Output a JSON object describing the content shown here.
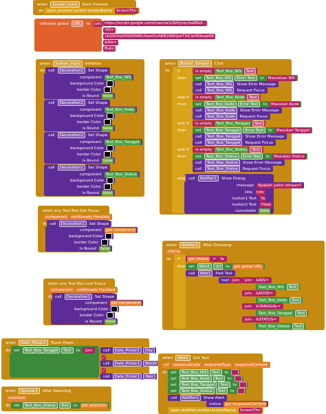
{
  "groups": [
    {
      "rows": [
        [
          "when",
          "Screen_Input",
          "Back Pressed"
        ],
        [
          "do"
        ],
        [
          "open another screen screenName",
          "ScreenThn"
        ]
      ]
    },
    {
      "rows": [
        [
          "initialize global",
          "URL",
          "to",
          "join"
        ],
        [
          "https://script.google.com/macros/s/AKfycbySwBKef..."
        ],
        [
          "?ID="
        ],
        [
          "1bQ6OfzD0lQ6tNWcXewOmA6B1NWrJseT3tCwf4iNsqeRA"
        ],
        [
          "&Nis="
        ],
        [
          "Buku"
        ]
      ]
    },
    {
      "rows": [
        [
          "when",
          "Screen_Input",
          "Initialize"
        ],
        [
          "do"
        ],
        [
          "call",
          "Decoration1",
          "Set Shape"
        ],
        [
          "component",
          "Text_Box_NIS"
        ],
        [
          "background Color"
        ],
        [
          "border Color"
        ],
        [
          "is Round",
          "false"
        ],
        [
          "call",
          "Decoration1",
          "Set Shape"
        ],
        [
          "component",
          "Text_Box_Kode"
        ],
        [
          "background Color"
        ],
        [
          "border Color"
        ],
        [
          "is Round",
          "false"
        ],
        [
          "call",
          "Decoration1",
          "Set Shape"
        ],
        [
          "component",
          "Text_Box_Tanggal"
        ],
        [
          "background Color"
        ],
        [
          "border Color"
        ],
        [
          "is Round",
          "false"
        ],
        [
          "call",
          "Decoration1",
          "Set Shape"
        ],
        [
          "component",
          "Text_Box_Status"
        ],
        [
          "background Color"
        ],
        [
          "border Color"
        ],
        [
          "is Round",
          "false"
        ]
      ]
    },
    {
      "rows": [
        [
          "when",
          "Button_Simpan",
          "Click"
        ],
        [
          "do"
        ],
        [
          "if"
        ],
        [
          "is empty",
          "Text_Box_NIS",
          "Text"
        ],
        [
          "then"
        ],
        [
          "set",
          "Text_Box_NIS",
          "Error Text",
          "to",
          "Masukkan NIS"
        ],
        [
          "call",
          "Text_Box_NIS",
          "Show Error Message"
        ],
        [
          "call",
          "Text_Box_NIS",
          "Request Focus"
        ],
        [
          "else if"
        ],
        [
          "is empty",
          "Text_Box_Kode",
          "Text"
        ],
        [
          "then"
        ],
        [
          "set",
          "Text_Box_Kode",
          "Error Text",
          "to",
          "Masukan Kode"
        ],
        [
          "call",
          "Text_Box_Kode",
          "Show Error Message"
        ],
        [
          "call",
          "Text_Box_Kode",
          "Request Focus"
        ],
        [
          "else if"
        ],
        [
          "is empty",
          "Text_Box_Tanggal",
          "Text"
        ],
        [
          "then"
        ],
        [
          "set",
          "Text_Box_Tanggal",
          "Error Text",
          "to",
          "Masukan Tanggal"
        ],
        [
          "call",
          "Text_Box_Tanggal",
          "Show Error Message"
        ],
        [
          "call",
          "Text_Box_Tanggal",
          "Request Focus"
        ],
        [
          "else if"
        ],
        [
          "is empty",
          "Text_Box_Status",
          "Text"
        ],
        [
          "then"
        ],
        [
          "set",
          "Text_Box_Status",
          "Error Text",
          "to",
          "Masukan Status"
        ],
        [
          "call",
          "Text_Box_Status",
          "Show Error Message"
        ],
        [
          "call",
          "Text_Box_Status",
          "Request Focus"
        ],
        [
          "else"
        ],
        [
          "call",
          "Notifier1",
          "Show Dialog"
        ],
        [
          "message",
          "Apakah yakin simpan?"
        ],
        [
          "title",
          "Info"
        ],
        [
          "button1 Text",
          "Ya"
        ],
        [
          "button2 Text",
          "Tidak"
        ],
        [
          "cancelable",
          "false"
        ]
      ]
    },
    {
      "rows": [
        [
          "when any Text Box Got Focus"
        ],
        [
          "component",
          "notAlready Handled"
        ],
        [
          "do"
        ],
        [
          "call",
          "Decoration1",
          "Set Shape"
        ],
        [
          "component",
          "get component"
        ],
        [
          "background Color"
        ],
        [
          "border Color"
        ],
        [
          "is Round",
          "false"
        ]
      ]
    },
    {
      "rows": [
        [
          "when any Text Box Lost Focus"
        ],
        [
          "component",
          "notAlready Handled"
        ],
        [
          "do"
        ],
        [
          "call",
          "Decoration1",
          "Set Shape"
        ],
        [
          "component",
          "get component"
        ],
        [
          "background Color"
        ],
        [
          "border Color"
        ],
        [
          "is Round",
          "false"
        ]
      ]
    },
    {
      "rows": [
        [
          "when",
          "Notifier1",
          "After Choosing"
        ],
        [
          "choice"
        ],
        [
          "do"
        ],
        [
          "if"
        ],
        [
          "get choice",
          "=",
          "Ya"
        ],
        [
          "then"
        ],
        [
          "set",
          "Web1",
          "Url",
          "to",
          "get global URL"
        ],
        [
          "call",
          "Web1",
          "Post Text"
        ],
        [
          "text"
        ],
        [
          "join"
        ],
        [
          "join",
          "&NIS="
        ],
        [
          "Text_Box_NIS",
          "Text"
        ],
        [
          "join",
          "&KODE="
        ],
        [
          "Text_Box_Kode",
          "Text"
        ],
        [
          "join",
          "&TANGGAL="
        ],
        [
          "Text_Box_Tanggal",
          "Text"
        ],
        [
          "join",
          "&STATUS="
        ],
        [
          "Text_Box_Status",
          "Text"
        ]
      ]
    },
    {
      "rows": [
        [
          "when",
          "Date_Picker1",
          "Touch Down"
        ],
        [
          "do"
        ],
        [
          "set",
          "Text_Box_Tanggal",
          "Text",
          "to"
        ],
        [
          "join"
        ],
        [
          "call",
          "Date_Picker1",
          "Day"
        ],
        [
          "/"
        ],
        [
          "call",
          "Date_Picker1",
          "Month"
        ],
        [
          "/"
        ],
        [
          "call",
          "Date_Picker1",
          "Year"
        ]
      ]
    },
    {
      "rows": [
        [
          "when",
          "Spinner1",
          "After Selecting"
        ],
        [
          "selection"
        ],
        [
          "do"
        ],
        [
          "set",
          "Text_Box_Status",
          "Text",
          "to",
          "get selection"
        ]
      ]
    },
    {
      "rows": [
        [
          "when",
          "Web1",
          "Got Text"
        ],
        [
          "url",
          "responseCode",
          "responseType",
          "responseContent"
        ],
        [
          "do"
        ],
        [
          "set",
          "Text_Box_NIS",
          "Text",
          "to"
        ],
        [
          "set",
          "Text_Box_Kode",
          "Text",
          "to"
        ],
        [
          "set",
          "Text_Box_Tanggal",
          "Text",
          "to"
        ],
        [
          "set",
          "Text_Box_Status",
          "Text",
          "to"
        ],
        [
          "call",
          "Notifier1",
          "Show Alert"
        ],
        [
          "notice",
          "get responseContent"
        ],
        [
          "open another screen screenName",
          "ScreenThn"
        ]
      ]
    }
  ]
}
